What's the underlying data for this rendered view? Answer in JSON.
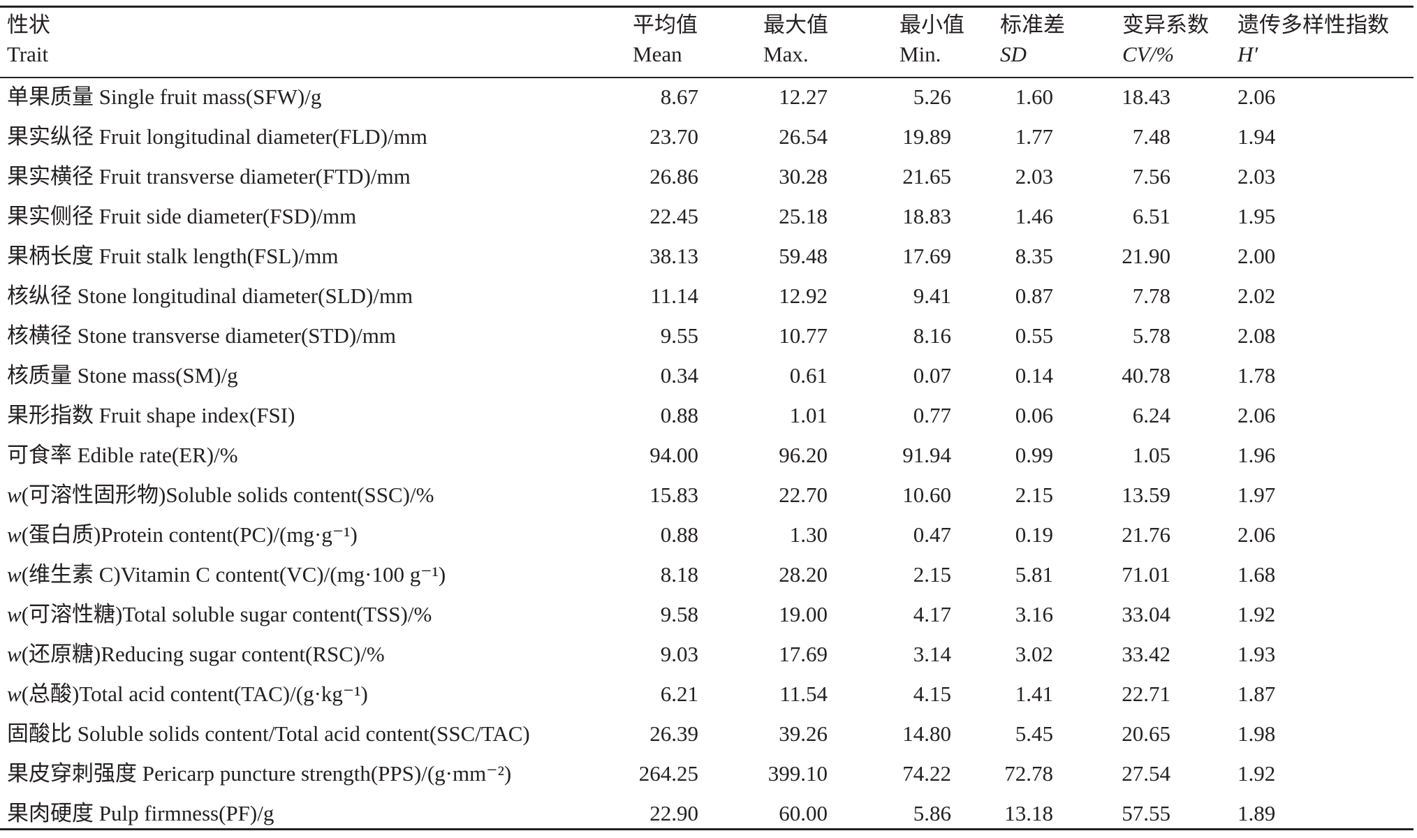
{
  "headers": {
    "trait": {
      "zh": "性状",
      "en": "Trait"
    },
    "mean": {
      "zh": "平均值",
      "en": "Mean"
    },
    "max": {
      "zh": "最大值",
      "en": "Max."
    },
    "min": {
      "zh": "最小值",
      "en": "Min."
    },
    "sd": {
      "zh": "标准差",
      "en": "SD"
    },
    "cv": {
      "zh": "变异系数",
      "en": "CV/%"
    },
    "h": {
      "zh": "遗传多样性指数",
      "en": "H′"
    }
  },
  "rows": [
    {
      "trait": "单果质量 Single fruit mass(SFW)/g",
      "mean": "8.67",
      "max": "12.27",
      "min": "5.26",
      "sd": "1.60",
      "cv": "18.43",
      "h": "2.06"
    },
    {
      "trait": "果实纵径 Fruit longitudinal diameter(FLD)/mm",
      "mean": "23.70",
      "max": "26.54",
      "min": "19.89",
      "sd": "1.77",
      "cv": "7.48",
      "h": "1.94"
    },
    {
      "trait": "果实横径 Fruit transverse diameter(FTD)/mm",
      "mean": "26.86",
      "max": "30.28",
      "min": "21.65",
      "sd": "2.03",
      "cv": "7.56",
      "h": "2.03"
    },
    {
      "trait": "果实侧径 Fruit side diameter(FSD)/mm",
      "mean": "22.45",
      "max": "25.18",
      "min": "18.83",
      "sd": "1.46",
      "cv": "6.51",
      "h": "1.95"
    },
    {
      "trait": "果柄长度 Fruit stalk length(FSL)/mm",
      "mean": "38.13",
      "max": "59.48",
      "min": "17.69",
      "sd": "8.35",
      "cv": "21.90",
      "h": "2.00"
    },
    {
      "trait": "核纵径 Stone longitudinal diameter(SLD)/mm",
      "mean": "11.14",
      "max": "12.92",
      "min": "9.41",
      "sd": "0.87",
      "cv": "7.78",
      "h": "2.02"
    },
    {
      "trait": "核横径 Stone transverse diameter(STD)/mm",
      "mean": "9.55",
      "max": "10.77",
      "min": "8.16",
      "sd": "0.55",
      "cv": "5.78",
      "h": "2.08"
    },
    {
      "trait": "核质量 Stone mass(SM)/g",
      "mean": "0.34",
      "max": "0.61",
      "min": "0.07",
      "sd": "0.14",
      "cv": "40.78",
      "h": "1.78"
    },
    {
      "trait": "果形指数 Fruit shape index(FSI)",
      "mean": "0.88",
      "max": "1.01",
      "min": "0.77",
      "sd": "0.06",
      "cv": "6.24",
      "h": "2.06"
    },
    {
      "trait": "可食率 Edible rate(ER)/%",
      "mean": "94.00",
      "max": "96.20",
      "min": "91.94",
      "sd": "0.99",
      "cv": "1.05",
      "h": "1.96"
    },
    {
      "trait_prefix": "w",
      "trait": "(可溶性固形物)Soluble solids content(SSC)/%",
      "mean": "15.83",
      "max": "22.70",
      "min": "10.60",
      "sd": "2.15",
      "cv": "13.59",
      "h": "1.97"
    },
    {
      "trait_prefix": "w",
      "trait": "(蛋白质)Protein content(PC)/(mg·g⁻¹)",
      "mean": "0.88",
      "max": "1.30",
      "min": "0.47",
      "sd": "0.19",
      "cv": "21.76",
      "h": "2.06"
    },
    {
      "trait_prefix": "w",
      "trait": "(维生素 C)Vitamin C content(VC)/(mg·100 g⁻¹)",
      "mean": "8.18",
      "max": "28.20",
      "min": "2.15",
      "sd": "5.81",
      "cv": "71.01",
      "h": "1.68"
    },
    {
      "trait_prefix": "w",
      "trait": "(可溶性糖)Total soluble sugar content(TSS)/%",
      "mean": "9.58",
      "max": "19.00",
      "min": "4.17",
      "sd": "3.16",
      "cv": "33.04",
      "h": "1.92"
    },
    {
      "trait_prefix": "w",
      "trait": "(还原糖)Reducing sugar content(RSC)/%",
      "mean": "9.03",
      "max": "17.69",
      "min": "3.14",
      "sd": "3.02",
      "cv": "33.42",
      "h": "1.93"
    },
    {
      "trait_prefix": "w",
      "trait": "(总酸)Total acid content(TAC)/(g·kg⁻¹)",
      "mean": "6.21",
      "max": "11.54",
      "min": "4.15",
      "sd": "1.41",
      "cv": "22.71",
      "h": "1.87"
    },
    {
      "trait": "固酸比 Soluble solids content/Total acid content(SSC/TAC)",
      "mean": "26.39",
      "max": "39.26",
      "min": "14.80",
      "sd": "5.45",
      "cv": "20.65",
      "h": "1.98"
    },
    {
      "trait": "果皮穿刺强度 Pericarp puncture strength(PPS)/(g·mm⁻²)",
      "mean": "264.25",
      "max": "399.10",
      "min": "74.22",
      "sd": "72.78",
      "cv": "27.54",
      "h": "1.92"
    },
    {
      "trait": "果肉硬度 Pulp firmness(PF)/g",
      "mean": "22.90",
      "max": "60.00",
      "min": "5.86",
      "sd": "13.18",
      "cv": "57.55",
      "h": "1.89"
    }
  ]
}
